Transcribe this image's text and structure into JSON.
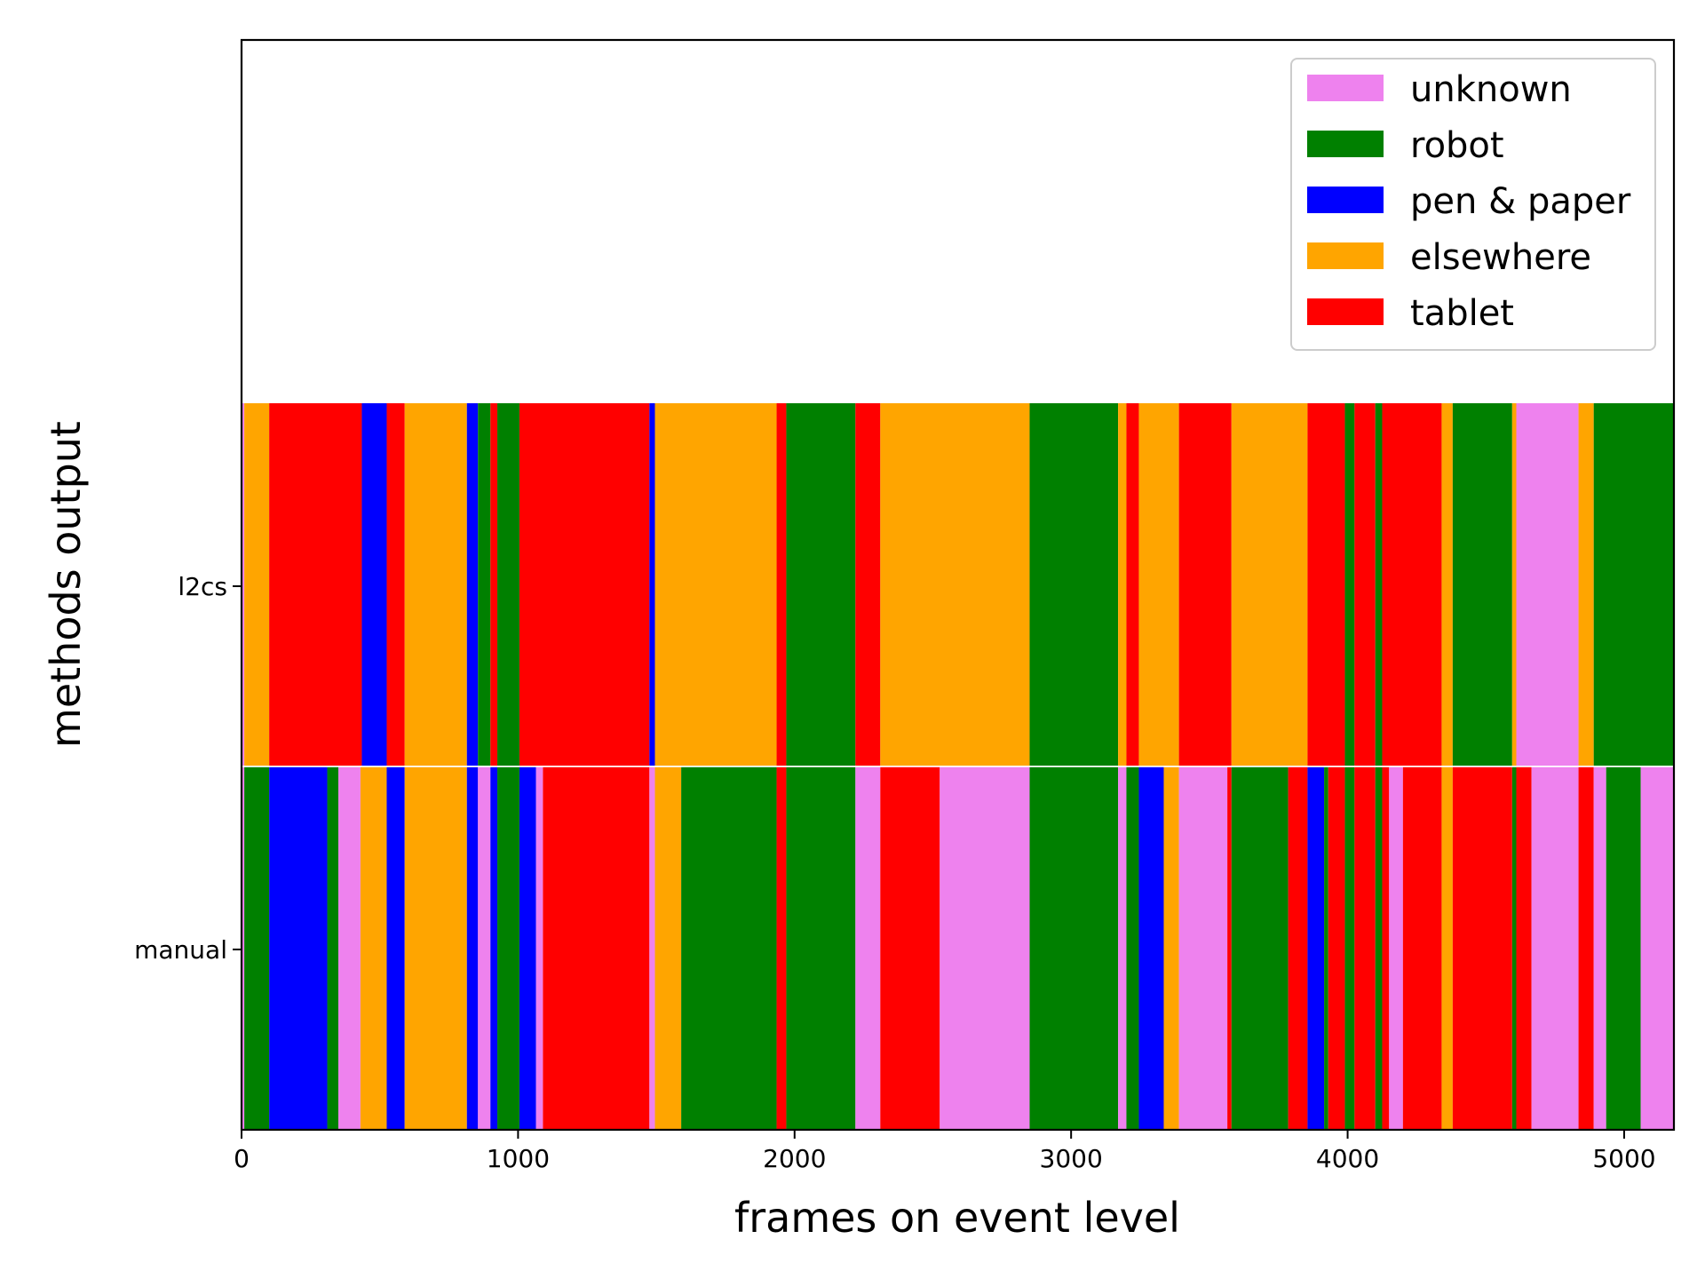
{
  "chart_data": {
    "type": "bar",
    "orientation": "horizontal-stacked-timeline",
    "title": "",
    "xlabel": "frames on event level",
    "ylabel": "methods output",
    "xlim": [
      0,
      5180
    ],
    "xticks": [
      0,
      1000,
      2000,
      3000,
      4000,
      5000
    ],
    "categories": [
      "l2cs",
      "manual"
    ],
    "grid": false,
    "legend_position": "top-right",
    "legend": [
      {
        "label": "unknown",
        "color": "#ee82ee"
      },
      {
        "label": "robot",
        "color": "#008000"
      },
      {
        "label": "pen & paper",
        "color": "#0000ff"
      },
      {
        "label": "elsewhere",
        "color": "#ffa500"
      },
      {
        "label": "tablet",
        "color": "#ff0000"
      }
    ],
    "series": [
      {
        "row": "l2cs",
        "segments": [
          {
            "start": 0,
            "end": 10,
            "label": "unknown"
          },
          {
            "start": 10,
            "end": 100,
            "label": "elsewhere"
          },
          {
            "start": 100,
            "end": 435,
            "label": "tablet"
          },
          {
            "start": 435,
            "end": 525,
            "label": "pen & paper"
          },
          {
            "start": 525,
            "end": 590,
            "label": "tablet"
          },
          {
            "start": 590,
            "end": 815,
            "label": "elsewhere"
          },
          {
            "start": 815,
            "end": 855,
            "label": "pen & paper"
          },
          {
            "start": 855,
            "end": 900,
            "label": "robot"
          },
          {
            "start": 900,
            "end": 925,
            "label": "tablet"
          },
          {
            "start": 925,
            "end": 1005,
            "label": "robot"
          },
          {
            "start": 1005,
            "end": 1475,
            "label": "tablet"
          },
          {
            "start": 1475,
            "end": 1495,
            "label": "pen & paper"
          },
          {
            "start": 1495,
            "end": 1935,
            "label": "elsewhere"
          },
          {
            "start": 1935,
            "end": 1970,
            "label": "tablet"
          },
          {
            "start": 1970,
            "end": 2220,
            "label": "robot"
          },
          {
            "start": 2220,
            "end": 2310,
            "label": "tablet"
          },
          {
            "start": 2310,
            "end": 2850,
            "label": "elsewhere"
          },
          {
            "start": 2850,
            "end": 3170,
            "label": "robot"
          },
          {
            "start": 3170,
            "end": 3200,
            "label": "elsewhere"
          },
          {
            "start": 3200,
            "end": 3245,
            "label": "tablet"
          },
          {
            "start": 3245,
            "end": 3390,
            "label": "elsewhere"
          },
          {
            "start": 3390,
            "end": 3580,
            "label": "tablet"
          },
          {
            "start": 3580,
            "end": 3855,
            "label": "elsewhere"
          },
          {
            "start": 3855,
            "end": 3990,
            "label": "tablet"
          },
          {
            "start": 3990,
            "end": 4025,
            "label": "robot"
          },
          {
            "start": 4025,
            "end": 4100,
            "label": "tablet"
          },
          {
            "start": 4100,
            "end": 4125,
            "label": "robot"
          },
          {
            "start": 4125,
            "end": 4340,
            "label": "tablet"
          },
          {
            "start": 4340,
            "end": 4380,
            "label": "elsewhere"
          },
          {
            "start": 4380,
            "end": 4595,
            "label": "robot"
          },
          {
            "start": 4595,
            "end": 4610,
            "label": "elsewhere"
          },
          {
            "start": 4610,
            "end": 4835,
            "label": "unknown"
          },
          {
            "start": 4835,
            "end": 4890,
            "label": "elsewhere"
          },
          {
            "start": 4890,
            "end": 5180,
            "label": "robot"
          }
        ]
      },
      {
        "row": "manual",
        "segments": [
          {
            "start": 0,
            "end": 10,
            "label": "unknown"
          },
          {
            "start": 10,
            "end": 100,
            "label": "robot"
          },
          {
            "start": 100,
            "end": 310,
            "label": "pen & paper"
          },
          {
            "start": 310,
            "end": 350,
            "label": "robot"
          },
          {
            "start": 350,
            "end": 430,
            "label": "unknown"
          },
          {
            "start": 430,
            "end": 525,
            "label": "elsewhere"
          },
          {
            "start": 525,
            "end": 590,
            "label": "pen & paper"
          },
          {
            "start": 590,
            "end": 815,
            "label": "elsewhere"
          },
          {
            "start": 815,
            "end": 855,
            "label": "pen & paper"
          },
          {
            "start": 855,
            "end": 900,
            "label": "unknown"
          },
          {
            "start": 900,
            "end": 925,
            "label": "pen & paper"
          },
          {
            "start": 925,
            "end": 1005,
            "label": "robot"
          },
          {
            "start": 1005,
            "end": 1065,
            "label": "pen & paper"
          },
          {
            "start": 1065,
            "end": 1090,
            "label": "unknown"
          },
          {
            "start": 1090,
            "end": 1475,
            "label": "tablet"
          },
          {
            "start": 1475,
            "end": 1495,
            "label": "unknown"
          },
          {
            "start": 1495,
            "end": 1590,
            "label": "elsewhere"
          },
          {
            "start": 1590,
            "end": 1935,
            "label": "robot"
          },
          {
            "start": 1935,
            "end": 1970,
            "label": "tablet"
          },
          {
            "start": 1970,
            "end": 2220,
            "label": "robot"
          },
          {
            "start": 2220,
            "end": 2310,
            "label": "unknown"
          },
          {
            "start": 2310,
            "end": 2525,
            "label": "tablet"
          },
          {
            "start": 2525,
            "end": 2850,
            "label": "unknown"
          },
          {
            "start": 2850,
            "end": 3170,
            "label": "robot"
          },
          {
            "start": 3170,
            "end": 3200,
            "label": "unknown"
          },
          {
            "start": 3200,
            "end": 3245,
            "label": "robot"
          },
          {
            "start": 3245,
            "end": 3335,
            "label": "pen & paper"
          },
          {
            "start": 3335,
            "end": 3390,
            "label": "elsewhere"
          },
          {
            "start": 3390,
            "end": 3565,
            "label": "unknown"
          },
          {
            "start": 3565,
            "end": 3580,
            "label": "tablet"
          },
          {
            "start": 3580,
            "end": 3785,
            "label": "robot"
          },
          {
            "start": 3785,
            "end": 3855,
            "label": "tablet"
          },
          {
            "start": 3855,
            "end": 3915,
            "label": "pen & paper"
          },
          {
            "start": 3915,
            "end": 3930,
            "label": "robot"
          },
          {
            "start": 3930,
            "end": 3990,
            "label": "tablet"
          },
          {
            "start": 3990,
            "end": 4025,
            "label": "robot"
          },
          {
            "start": 4025,
            "end": 4100,
            "label": "tablet"
          },
          {
            "start": 4100,
            "end": 4125,
            "label": "robot"
          },
          {
            "start": 4125,
            "end": 4150,
            "label": "tablet"
          },
          {
            "start": 4150,
            "end": 4200,
            "label": "unknown"
          },
          {
            "start": 4200,
            "end": 4340,
            "label": "tablet"
          },
          {
            "start": 4340,
            "end": 4380,
            "label": "elsewhere"
          },
          {
            "start": 4380,
            "end": 4595,
            "label": "tablet"
          },
          {
            "start": 4595,
            "end": 4610,
            "label": "robot"
          },
          {
            "start": 4610,
            "end": 4665,
            "label": "tablet"
          },
          {
            "start": 4665,
            "end": 4835,
            "label": "unknown"
          },
          {
            "start": 4835,
            "end": 4890,
            "label": "tablet"
          },
          {
            "start": 4890,
            "end": 4935,
            "label": "unknown"
          },
          {
            "start": 4935,
            "end": 5060,
            "label": "robot"
          },
          {
            "start": 5060,
            "end": 5180,
            "label": "unknown"
          }
        ]
      }
    ]
  }
}
